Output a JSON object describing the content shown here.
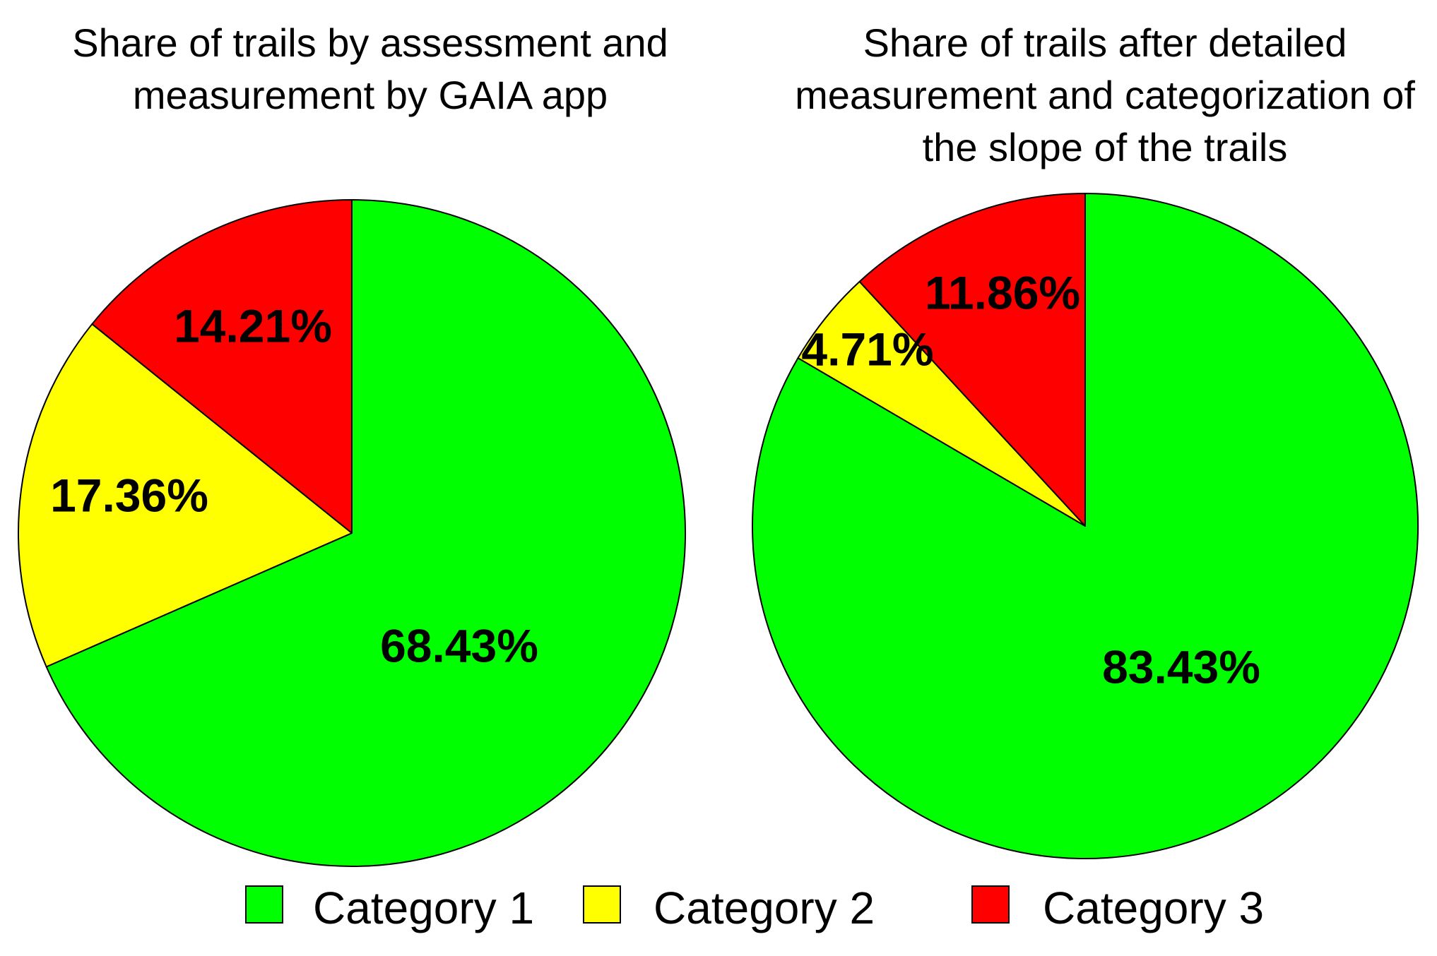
{
  "chart_data": [
    {
      "type": "pie",
      "title_lines": [
        "Share of trails by assessment and",
        "measurement by GAIA app"
      ],
      "categories": [
        "Category 1",
        "Category 2",
        "Category 3"
      ],
      "values": [
        68.43,
        17.36,
        14.21
      ],
      "labels": [
        "68.43%",
        "17.36%",
        "14.21%"
      ],
      "start": "12 o'clock",
      "direction": "clockwise"
    },
    {
      "type": "pie",
      "title_lines": [
        "Share of trails after detailed",
        "measurement and categorization of",
        "the slope of the trails"
      ],
      "categories": [
        "Category 1",
        "Category 2",
        "Category 3"
      ],
      "values": [
        83.43,
        4.71,
        11.86
      ],
      "labels": [
        "83.43%",
        "4.71%",
        "11.86%"
      ],
      "start": "12 o'clock",
      "direction": "clockwise"
    }
  ],
  "legend": {
    "placement": "bottom",
    "items": [
      {
        "label": "Category 1",
        "color": "#00FF00"
      },
      {
        "label": "Category 2",
        "color": "#FFFF00"
      },
      {
        "label": "Category 3",
        "color": "#FF0000"
      }
    ]
  }
}
